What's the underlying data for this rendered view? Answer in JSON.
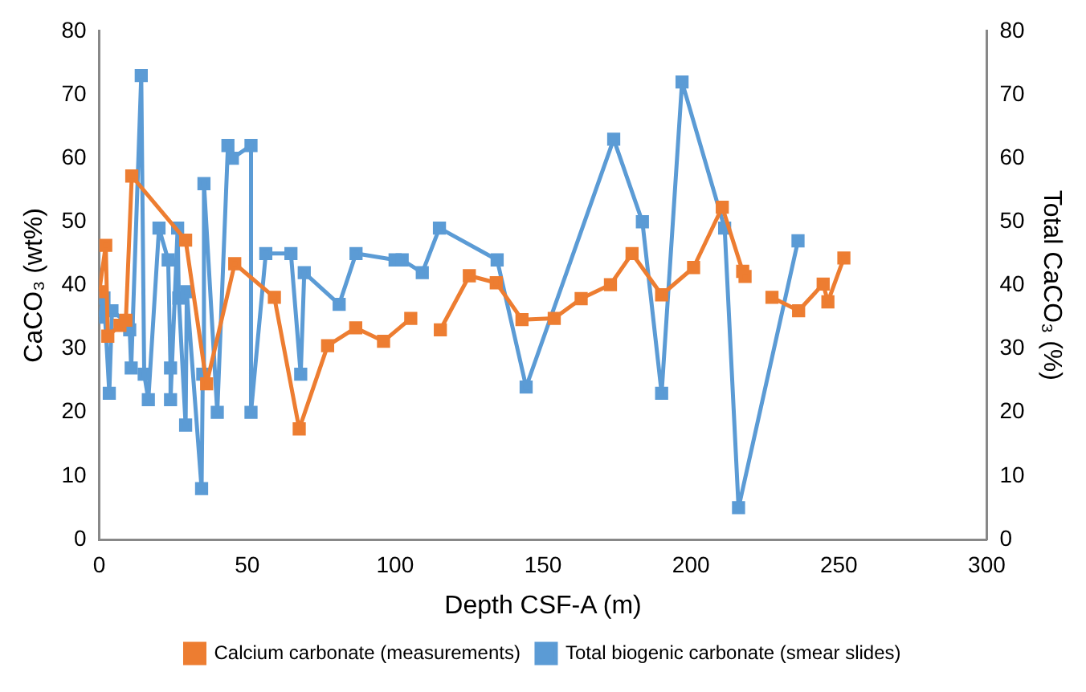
{
  "chart_data": {
    "type": "line",
    "xlabel": "Depth CSF-A (m)",
    "ylabel": "CaCO₃ (wt%)",
    "y2label": "Total CaCO₃ (%)",
    "xlim": [
      0,
      300
    ],
    "xticks": [
      0,
      50,
      100,
      150,
      200,
      250,
      300
    ],
    "ylim": [
      0,
      80
    ],
    "yticks": [
      0,
      10,
      20,
      30,
      40,
      50,
      60,
      70,
      80
    ],
    "y2lim": [
      0,
      80
    ],
    "y2ticks": [
      0,
      10,
      20,
      30,
      40,
      50,
      60,
      70,
      80
    ],
    "grid": false,
    "legend": "bottom",
    "marker": "square",
    "line_style": "solid",
    "series": [
      {
        "name": "Calcium carbonate (measurements)",
        "color": "#ed7d31",
        "x": [
          0,
          2.2,
          2.9,
          7,
          9,
          11,
          29.2,
          36.3,
          45.8,
          59.2,
          67.6,
          77.2,
          86.7,
          96.1,
          105.3,
          110,
          115.3,
          125.1,
          134.2,
          142.9,
          153.8,
          162.9,
          172.8,
          180.1,
          190.1,
          200.9,
          210.6,
          217.5,
          218.3,
          222,
          227.4,
          236.4,
          244.7,
          246.3,
          251.7
        ],
        "values": [
          39,
          46.3,
          32,
          33.7,
          34.5,
          57.2,
          47.1,
          24.5,
          43.4,
          38.1,
          17.4,
          30.5,
          33.3,
          31.2,
          34.8,
          null,
          33,
          41.5,
          40.4,
          34.6,
          34.8,
          37.9,
          40.1,
          45,
          38.5,
          42.8,
          52.3,
          42.2,
          41.4,
          null,
          38.1,
          36,
          40.2,
          37.4,
          44.3
        ]
      },
      {
        "name": "Total biogenic carbonate (smear slides)",
        "color": "#5b9bd5",
        "axis": "y2",
        "x": [
          0,
          1.6,
          3.4,
          4.3,
          9.7,
          10.3,
          10.8,
          14.2,
          15.2,
          16.6,
          20.2,
          23.3,
          24.1,
          24.1,
          26.5,
          26.9,
          29.2,
          29.6,
          34.6,
          35,
          35.4,
          39.9,
          43.5,
          45,
          51.3,
          51.3,
          56.3,
          64.8,
          68.1,
          69.3,
          81.1,
          86.8,
          100,
          102.4,
          109.2,
          115,
          134.5,
          144.3,
          173.9,
          183.6,
          190.1,
          197,
          211.4,
          216.1,
          236.2
        ],
        "values": [
          35,
          38,
          23,
          36,
          34,
          33,
          27,
          73,
          26,
          22,
          49,
          44,
          27,
          22,
          49,
          38,
          18,
          39,
          8,
          26,
          56,
          20,
          62,
          60,
          62,
          20,
          45,
          45,
          26,
          42,
          37,
          45,
          44,
          44,
          42,
          49,
          44,
          24,
          63,
          50,
          23,
          72,
          49,
          5,
          47
        ]
      }
    ]
  }
}
